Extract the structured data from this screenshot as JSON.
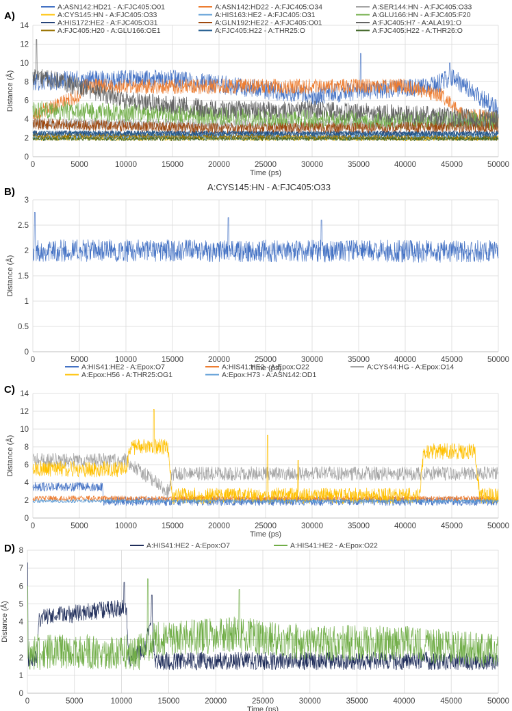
{
  "panels": [
    {
      "label": "A)",
      "chart_data": {
        "type": "line",
        "title": "",
        "xlabel": "Time (ps)",
        "ylabel": "Distance (Å)",
        "xlim": [
          0,
          50000
        ],
        "ylim": [
          0,
          14
        ],
        "xticks": [
          0,
          5000,
          10000,
          15000,
          20000,
          25000,
          30000,
          35000,
          40000,
          45000,
          50000
        ],
        "yticks": [
          0,
          2,
          4,
          6,
          8,
          10,
          12,
          14
        ],
        "grid": true,
        "legend_position": "top",
        "series": [
          {
            "name": "A:ASN142:HD21 - A:FJC405:O01",
            "color": "#4472C4",
            "profile": [
              [
                0,
                8.0
              ],
              [
                5000,
                8.2
              ],
              [
                15000,
                8.3
              ],
              [
                30000,
                6.5
              ],
              [
                35000,
                7.0
              ],
              [
                43000,
                7.5
              ],
              [
                45000,
                8.5
              ],
              [
                50000,
                5.0
              ]
            ],
            "noise": 1.0,
            "spikes": [
              [
                35200,
                11.0
              ],
              [
                44800,
                10.0
              ]
            ]
          },
          {
            "name": "A:ASN142:HD22 - A:FJC405:O34",
            "color": "#ED7D31",
            "profile": [
              [
                0,
                4.5
              ],
              [
                5000,
                6.5
              ],
              [
                5500,
                7.5
              ],
              [
                20000,
                7.5
              ],
              [
                40000,
                7.5
              ],
              [
                44000,
                6.5
              ],
              [
                46000,
                4.5
              ],
              [
                50000,
                4.0
              ]
            ],
            "noise": 0.8,
            "spikes": []
          },
          {
            "name": "A:SER144:HN - A:FJC405:O33",
            "color": "#A5A5A5",
            "profile": [
              [
                0,
                3.5
              ],
              [
                20000,
                3.4
              ],
              [
                50000,
                3.5
              ]
            ],
            "noise": 0.6,
            "spikes": []
          },
          {
            "name": "A:CYS145:HN - A:FJC405:O33",
            "color": "#FFC000",
            "profile": [
              [
                0,
                2.0
              ],
              [
                50000,
                2.0
              ]
            ],
            "noise": 0.3,
            "spikes": []
          },
          {
            "name": "A:HIS163:HE2 - A:FJC405:O31",
            "color": "#5B9BD5",
            "profile": [
              [
                0,
                2.1
              ],
              [
                50000,
                2.1
              ]
            ],
            "noise": 0.3,
            "spikes": []
          },
          {
            "name": "A:GLU166:HN - A:FJC405:F20",
            "color": "#70AD47",
            "profile": [
              [
                0,
                5.0
              ],
              [
                15000,
                4.5
              ],
              [
                30000,
                4.0
              ],
              [
                50000,
                3.8
              ]
            ],
            "noise": 1.0,
            "spikes": []
          },
          {
            "name": "A:HIS172:HE2 - A:FJC405:O31",
            "color": "#264478",
            "profile": [
              [
                0,
                2.5
              ],
              [
                50000,
                2.5
              ]
            ],
            "noise": 0.3,
            "spikes": []
          },
          {
            "name": "A:GLN192:HE22 - A:FJC405:O01",
            "color": "#9E480E",
            "profile": [
              [
                0,
                3.5
              ],
              [
                20000,
                3.0
              ],
              [
                50000,
                3.2
              ]
            ],
            "noise": 0.6,
            "spikes": []
          },
          {
            "name": "A:FJC405:H7 - A:ALA191:O",
            "color": "#636363",
            "profile": [
              [
                0,
                8.5
              ],
              [
                3000,
                8.0
              ],
              [
                10000,
                6.0
              ],
              [
                20000,
                5.0
              ],
              [
                30000,
                5.0
              ],
              [
                40000,
                4.5
              ],
              [
                50000,
                4.0
              ]
            ],
            "noise": 1.0,
            "spikes": [
              [
                400,
                12.5
              ]
            ]
          },
          {
            "name": "A:FJC405:H20 - A:GLU166:OE1",
            "color": "#997300",
            "profile": [
              [
                0,
                2.2
              ],
              [
                50000,
                2.0
              ]
            ],
            "noise": 0.3,
            "spikes": []
          },
          {
            "name": "A:FJC405:H22 - A:THR25:O",
            "color": "#255E91",
            "profile": [
              [
                0,
                2.5
              ],
              [
                50000,
                2.4
              ]
            ],
            "noise": 0.3,
            "spikes": []
          },
          {
            "name": "A:FJC405:H22 - A:THR26:O",
            "color": "#43682B",
            "profile": [
              [
                0,
                1.9
              ],
              [
                50000,
                1.9
              ]
            ],
            "noise": 0.2,
            "spikes": []
          }
        ]
      }
    },
    {
      "label": "B)",
      "chart_data": {
        "type": "line",
        "title": "A:CYS145:HN - A:FJC405:O33",
        "xlabel": "Time (ps)",
        "ylabel": "Distance (Å)",
        "xlim": [
          0,
          50000
        ],
        "ylim": [
          0,
          3
        ],
        "xticks": [
          0,
          5000,
          10000,
          15000,
          20000,
          25000,
          30000,
          35000,
          40000,
          45000,
          50000
        ],
        "yticks": [
          0,
          0.5,
          1,
          1.5,
          2,
          2.5,
          3
        ],
        "grid": true,
        "legend_position": "none",
        "series": [
          {
            "name": "A:CYS145:HN - A:FJC405:O33",
            "color": "#4472C4",
            "profile": [
              [
                0,
                2.0
              ],
              [
                50000,
                1.98
              ]
            ],
            "noise": 0.22,
            "spikes": [
              [
                200,
                2.75
              ],
              [
                21000,
                2.65
              ],
              [
                31000,
                2.6
              ]
            ]
          }
        ]
      }
    },
    {
      "label": "C)",
      "chart_data": {
        "type": "line",
        "title": "",
        "xlabel": "Time (ps)",
        "ylabel": "Distance (Å)",
        "xlim": [
          0,
          50000
        ],
        "ylim": [
          0,
          14
        ],
        "xticks": [
          0,
          5000,
          10000,
          15000,
          20000,
          25000,
          30000,
          35000,
          40000,
          45000,
          50000
        ],
        "yticks": [
          0,
          2,
          4,
          6,
          8,
          10,
          12,
          14
        ],
        "grid": true,
        "legend_position": "top",
        "series": [
          {
            "name": "A:HIS41:HE2 - A:Epox:O7",
            "color": "#4472C4",
            "profile": [
              [
                0,
                3.5
              ],
              [
                7500,
                3.5
              ],
              [
                7600,
                1.9
              ],
              [
                50000,
                1.9
              ]
            ],
            "noise": 0.5,
            "spikes": []
          },
          {
            "name": "A:HIS41:HE2 - A:Epox:O22",
            "color": "#ED7D31",
            "profile": [
              [
                0,
                2.2
              ],
              [
                50000,
                2.2
              ]
            ],
            "noise": 0.3,
            "spikes": []
          },
          {
            "name": "A:CYS44:HG - A:Epox:O14",
            "color": "#A5A5A5",
            "profile": [
              [
                0,
                6.5
              ],
              [
                10000,
                6.5
              ],
              [
                14500,
                3.0
              ],
              [
                15000,
                5.0
              ],
              [
                50000,
                5.0
              ]
            ],
            "noise": 0.8,
            "spikes": []
          },
          {
            "name": "A:Epox:H56 - A:THR25:OG1",
            "color": "#FFC000",
            "profile": [
              [
                0,
                5.5
              ],
              [
                10000,
                5.5
              ],
              [
                10500,
                8.0
              ],
              [
                14500,
                8.0
              ],
              [
                15000,
                2.5
              ],
              [
                41500,
                2.5
              ],
              [
                42000,
                7.5
              ],
              [
                47500,
                7.5
              ],
              [
                48000,
                2.5
              ],
              [
                50000,
                2.5
              ]
            ],
            "noise": 0.9,
            "spikes": [
              [
                13000,
                12.2
              ],
              [
                25200,
                9.3
              ],
              [
                28500,
                6.5
              ]
            ]
          },
          {
            "name": "A:Epox:H73 - A:ASN142:OD1",
            "color": "#5B9BD5",
            "profile": [
              [
                0,
                1.9
              ],
              [
                50000,
                1.9
              ]
            ],
            "noise": 0.2,
            "spikes": []
          }
        ]
      }
    },
    {
      "label": "D)",
      "chart_data": {
        "type": "line",
        "title": "",
        "xlabel": "Time (ps)",
        "ylabel": "Distance (Å)",
        "xlim": [
          0,
          50000
        ],
        "ylim": [
          0,
          8
        ],
        "xticks": [
          0,
          5000,
          10000,
          15000,
          20000,
          25000,
          30000,
          35000,
          40000,
          45000,
          50000
        ],
        "yticks": [
          0,
          1,
          2,
          3,
          4,
          5,
          6,
          7,
          8
        ],
        "grid": true,
        "legend_position": "top",
        "series": [
          {
            "name": "A:HIS41:HE2 - A:Epox:O7",
            "color": "#1F2D5A",
            "profile": [
              [
                0,
                1.9
              ],
              [
                1000,
                1.9
              ],
              [
                1200,
                4.2
              ],
              [
                10500,
                4.8
              ],
              [
                10800,
                1.9
              ],
              [
                12500,
                2.5
              ],
              [
                13200,
                4.5
              ],
              [
                13500,
                1.8
              ],
              [
                50000,
                1.8
              ]
            ],
            "noise": 0.5,
            "spikes": [
              [
                0,
                7.3
              ],
              [
                10300,
                6.2
              ],
              [
                13200,
                5.5
              ]
            ]
          },
          {
            "name": "A:HIS41:HE2 - A:Epox:O22",
            "color": "#70AD47",
            "profile": [
              [
                0,
                2.3
              ],
              [
                12000,
                2.3
              ],
              [
                13500,
                3.0
              ],
              [
                22000,
                3.3
              ],
              [
                30000,
                2.8
              ],
              [
                40000,
                2.8
              ],
              [
                50000,
                2.3
              ]
            ],
            "noise": 1.0,
            "spikes": [
              [
                0,
                6.0
              ],
              [
                12800,
                6.4
              ],
              [
                22500,
                5.8
              ]
            ]
          }
        ]
      }
    }
  ]
}
